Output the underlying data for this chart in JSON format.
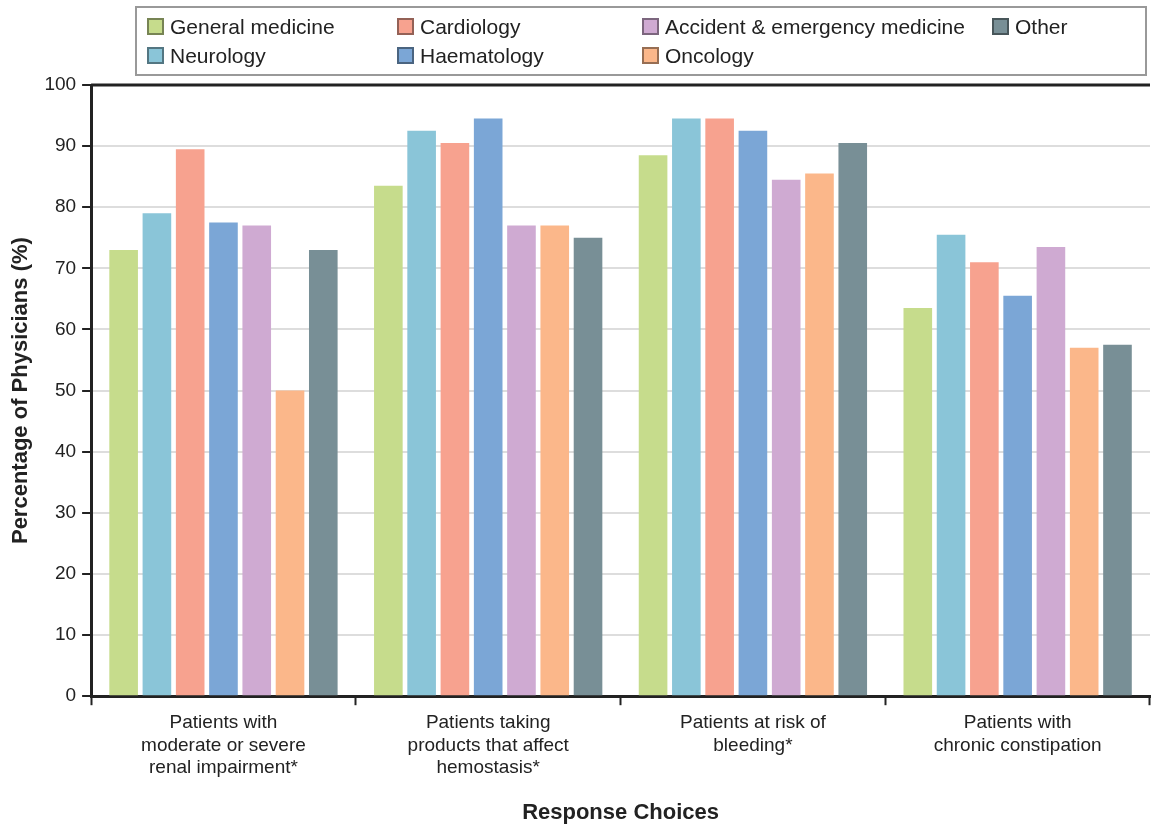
{
  "chart_data": {
    "type": "bar",
    "xlabel": "Response Choices",
    "ylabel": "Percentage of Physicians (%)",
    "categories": [
      "Patients with moderate or severe renal impairment*",
      "Patients taking products that affect hemostasis*",
      "Patients at risk of bleeding*",
      "Patients with chronic constipation"
    ],
    "series": [
      {
        "name": "General medicine",
        "color": "#c6dc8c",
        "values": [
          73,
          83.5,
          88.5,
          63.5
        ]
      },
      {
        "name": "Neurology",
        "color": "#8ac5d8",
        "values": [
          79,
          92.5,
          94.5,
          75.5
        ]
      },
      {
        "name": "Cardiology",
        "color": "#f7a28f",
        "values": [
          89.5,
          90.5,
          94.5,
          71
        ]
      },
      {
        "name": "Haematology",
        "color": "#7ba6d6",
        "values": [
          77.5,
          94.5,
          92.5,
          65.5
        ]
      },
      {
        "name": "Accident & emergency medicine",
        "color": "#cfaad2",
        "values": [
          77,
          77,
          84.5,
          73.5
        ]
      },
      {
        "name": "Oncology",
        "color": "#fbb78a",
        "values": [
          50,
          77,
          85.5,
          57
        ]
      },
      {
        "name": "Other",
        "color": "#788f96",
        "values": [
          73,
          75,
          90.5,
          57.5
        ]
      }
    ],
    "ylim": [
      0,
      100
    ],
    "yticks": [
      0,
      10,
      20,
      30,
      40,
      50,
      60,
      70,
      80,
      90,
      100
    ],
    "grid": "y",
    "legend": "top"
  }
}
